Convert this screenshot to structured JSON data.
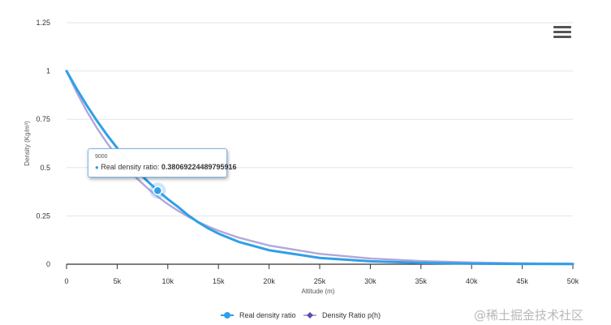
{
  "chart_data": {
    "type": "line",
    "title": "",
    "xlabel": "Altitude (m)",
    "ylabel": "Density (Kg/m³)",
    "xlim": [
      0,
      50000
    ],
    "ylim": [
      0,
      1.25
    ],
    "x_ticks": [
      0,
      5000,
      10000,
      15000,
      20000,
      25000,
      30000,
      35000,
      40000,
      45000,
      50000
    ],
    "x_tick_labels": [
      "0",
      "5k",
      "10k",
      "15k",
      "20k",
      "25k",
      "30k",
      "35k",
      "40k",
      "45k",
      "50k"
    ],
    "y_ticks": [
      0,
      0.25,
      0.5,
      0.75,
      1,
      1.25
    ],
    "y_tick_labels": [
      "0",
      "0.25",
      "0.5",
      "0.75",
      "1",
      "1.25"
    ],
    "series": [
      {
        "name": "Real density ratio",
        "color": "#2f9fe8",
        "x": [
          0,
          1000,
          2000,
          3000,
          4000,
          5000,
          6000,
          7000,
          8000,
          9000,
          10000,
          11000,
          12000,
          13000,
          14000,
          15000,
          17000,
          20000,
          25000,
          30000,
          35000,
          40000,
          45000,
          50000
        ],
        "values": [
          1.0,
          0.9075,
          0.8217,
          0.7423,
          0.6689,
          0.6012,
          0.5389,
          0.4817,
          0.4292,
          0.3807,
          0.3369,
          0.2971,
          0.2539,
          0.217,
          0.1855,
          0.1585,
          0.1158,
          0.0725,
          0.0326,
          0.015,
          0.0069,
          0.0032,
          0.0016,
          0.0008
        ]
      },
      {
        "name": "Density Ratio p(h)",
        "color": "#b1a8d8",
        "x": [
          0,
          1000,
          2000,
          3000,
          4000,
          5000,
          6000,
          7000,
          8000,
          9000,
          10000,
          11000,
          12000,
          13000,
          14000,
          15000,
          17000,
          20000,
          25000,
          30000,
          35000,
          40000,
          45000,
          50000
        ],
        "values": [
          1.0,
          0.8898,
          0.7918,
          0.7046,
          0.6269,
          0.5579,
          0.4964,
          0.4417,
          0.3931,
          0.3498,
          0.3112,
          0.277,
          0.2464,
          0.2193,
          0.1951,
          0.1736,
          0.1375,
          0.0969,
          0.0537,
          0.0298,
          0.0165,
          0.0092,
          0.0051,
          0.0028
        ]
      }
    ],
    "legend_position": "bottom-center",
    "grid": true,
    "highlight": {
      "series": "Real density ratio",
      "x": 9000,
      "x_label": "9000",
      "label": "Real density ratio",
      "value": "0.38069224489795916"
    }
  },
  "menu": {
    "icon": "hamburger-menu-icon"
  },
  "watermark": "@稀土掘金技术社区"
}
